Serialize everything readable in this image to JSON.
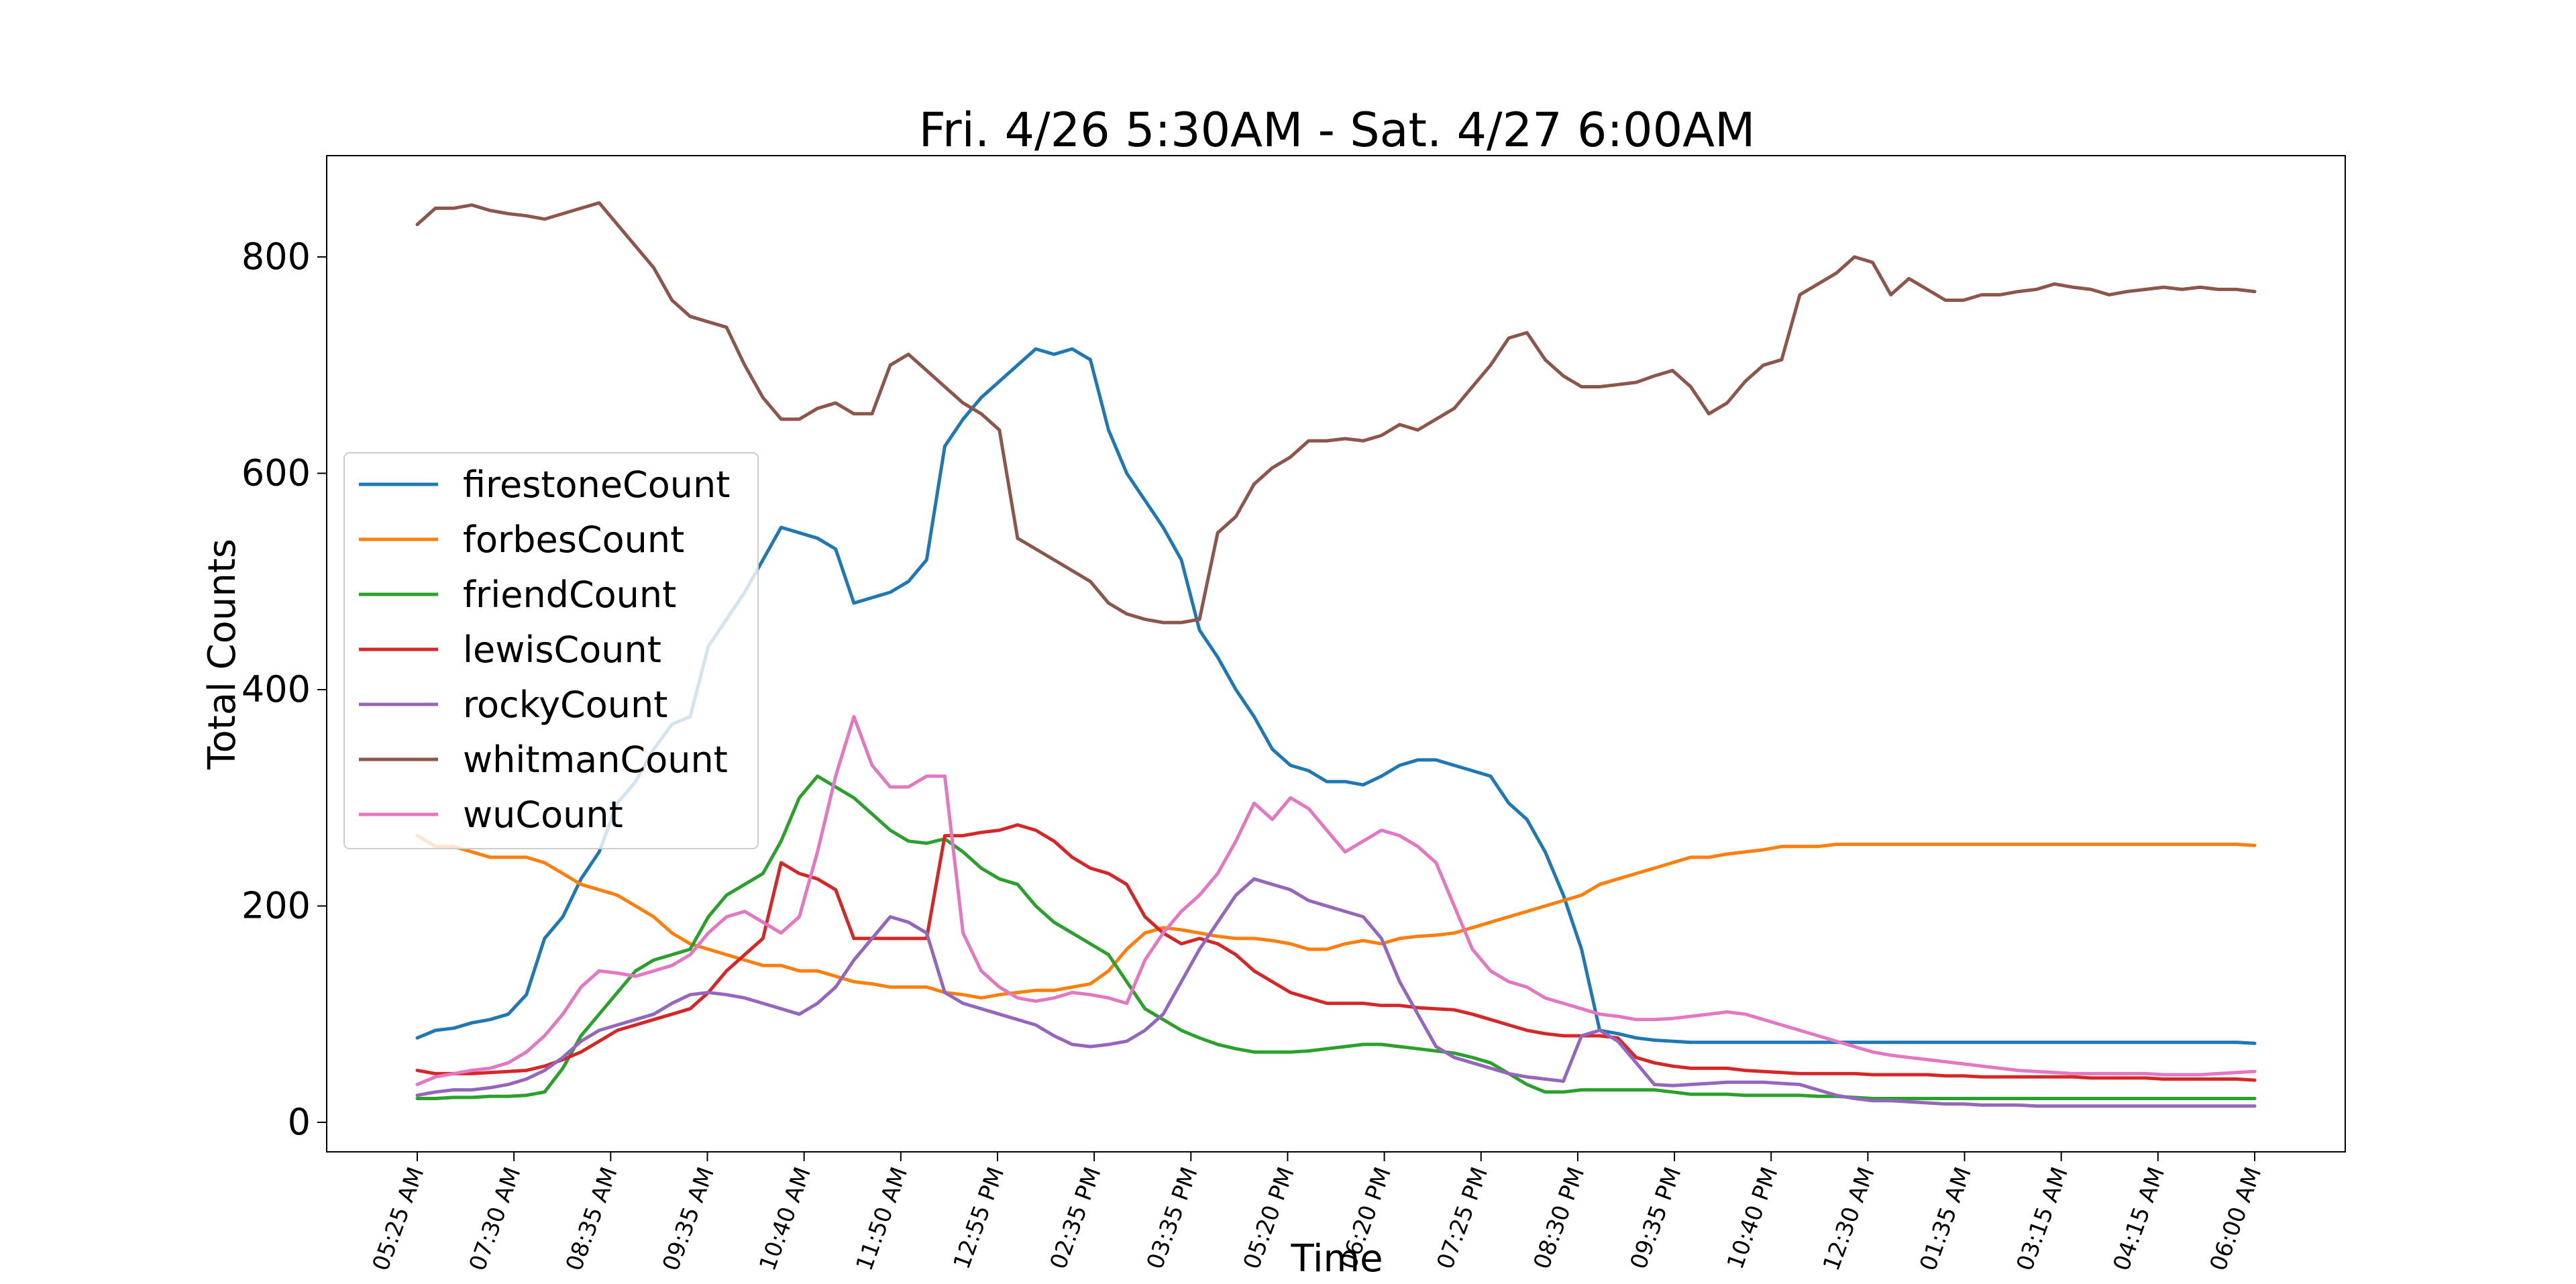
{
  "chart_data": {
    "type": "line",
    "title": "Fri. 4/26 5:30AM - Sat. 4/27 6:00AM",
    "xlabel": "Time",
    "ylabel": "Total Counts",
    "ylim": [
      -30,
      895
    ],
    "yticks": [
      0,
      200,
      400,
      600,
      800
    ],
    "x_tick_labels": [
      "05:25 AM",
      "07:30 AM",
      "08:35 AM",
      "09:35 AM",
      "10:40 AM",
      "11:50 AM",
      "12:55 PM",
      "02:35 PM",
      "03:35 PM",
      "05:20 PM",
      "06:20 PM",
      "07:25 PM",
      "08:30 PM",
      "09:35 PM",
      "10:40 PM",
      "12:30 AM",
      "01:35 AM",
      "03:15 AM",
      "04:15 AM",
      "06:00 AM"
    ],
    "grid": false,
    "legend_position": "center-left",
    "series": [
      {
        "name": "firestoneCount",
        "color": "#1f77b4",
        "values": [
          78,
          85,
          87,
          92,
          95,
          100,
          118,
          170,
          190,
          225,
          250,
          295,
          315,
          345,
          368,
          375,
          440,
          465,
          490,
          520,
          550,
          545,
          540,
          530,
          480,
          485,
          490,
          500,
          520,
          625,
          650,
          670,
          685,
          700,
          715,
          710,
          715,
          705,
          640,
          600,
          575,
          550,
          520,
          455,
          430,
          400,
          375,
          345,
          330,
          325,
          315,
          315,
          312,
          320,
          330,
          335,
          335,
          330,
          325,
          320,
          295,
          280,
          250,
          210,
          160,
          85,
          82,
          78,
          76,
          75,
          74,
          74,
          74,
          74,
          74,
          74,
          74,
          74,
          74,
          74,
          74,
          74,
          74,
          74,
          74,
          74,
          74,
          74,
          74,
          74,
          74,
          74,
          74,
          74,
          74,
          74,
          74,
          74,
          74,
          74,
          74,
          73
        ]
      },
      {
        "name": "forbesCount",
        "color": "#ff7f0e",
        "values": [
          265,
          255,
          255,
          250,
          245,
          245,
          245,
          240,
          230,
          220,
          215,
          210,
          200,
          190,
          175,
          165,
          160,
          155,
          150,
          145,
          145,
          140,
          140,
          135,
          130,
          128,
          125,
          125,
          125,
          120,
          118,
          115,
          118,
          120,
          122,
          122,
          125,
          128,
          140,
          160,
          175,
          180,
          178,
          175,
          172,
          170,
          170,
          168,
          165,
          160,
          160,
          165,
          168,
          165,
          170,
          172,
          173,
          175,
          180,
          185,
          190,
          195,
          200,
          205,
          210,
          220,
          225,
          230,
          235,
          240,
          245,
          245,
          248,
          250,
          252,
          255,
          255,
          255,
          257,
          257,
          257,
          257,
          257,
          257,
          257,
          257,
          257,
          257,
          257,
          257,
          257,
          257,
          257,
          257,
          257,
          257,
          257,
          257,
          257,
          257,
          257,
          256
        ]
      },
      {
        "name": "friendCount",
        "color": "#2ca02c",
        "values": [
          22,
          22,
          23,
          23,
          24,
          24,
          25,
          28,
          50,
          80,
          100,
          120,
          140,
          150,
          155,
          160,
          190,
          210,
          220,
          230,
          260,
          300,
          320,
          310,
          300,
          285,
          270,
          260,
          258,
          262,
          250,
          235,
          225,
          220,
          200,
          185,
          175,
          165,
          155,
          130,
          105,
          95,
          85,
          78,
          72,
          68,
          65,
          65,
          65,
          66,
          68,
          70,
          72,
          72,
          70,
          68,
          66,
          64,
          60,
          55,
          45,
          35,
          28,
          28,
          30,
          30,
          30,
          30,
          30,
          28,
          26,
          26,
          26,
          25,
          25,
          25,
          25,
          24,
          24,
          23,
          22,
          22,
          22,
          22,
          22,
          22,
          22,
          22,
          22,
          22,
          22,
          22,
          22,
          22,
          22,
          22,
          22,
          22,
          22,
          22,
          22,
          22
        ]
      },
      {
        "name": "lewisCount",
        "color": "#d62728",
        "values": [
          48,
          45,
          45,
          45,
          46,
          47,
          48,
          52,
          58,
          65,
          75,
          85,
          90,
          95,
          100,
          105,
          120,
          140,
          155,
          170,
          240,
          230,
          225,
          215,
          170,
          170,
          170,
          170,
          170,
          265,
          265,
          268,
          270,
          275,
          270,
          260,
          245,
          235,
          230,
          220,
          190,
          175,
          165,
          170,
          165,
          155,
          140,
          130,
          120,
          115,
          110,
          110,
          110,
          108,
          108,
          106,
          105,
          104,
          100,
          95,
          90,
          85,
          82,
          80,
          80,
          80,
          78,
          60,
          55,
          52,
          50,
          50,
          50,
          48,
          47,
          46,
          45,
          45,
          45,
          45,
          44,
          44,
          44,
          44,
          43,
          43,
          42,
          42,
          42,
          42,
          42,
          42,
          41,
          41,
          41,
          41,
          40,
          40,
          40,
          40,
          40,
          39
        ]
      },
      {
        "name": "rockyCount",
        "color": "#9467bd",
        "values": [
          25,
          28,
          30,
          30,
          32,
          35,
          40,
          48,
          60,
          75,
          85,
          90,
          95,
          100,
          110,
          118,
          120,
          118,
          115,
          110,
          105,
          100,
          110,
          125,
          150,
          170,
          190,
          185,
          175,
          120,
          110,
          105,
          100,
          95,
          90,
          80,
          72,
          70,
          72,
          75,
          85,
          100,
          130,
          160,
          185,
          210,
          225,
          220,
          215,
          205,
          200,
          195,
          190,
          170,
          130,
          100,
          70,
          60,
          55,
          50,
          45,
          42,
          40,
          38,
          80,
          85,
          75,
          55,
          35,
          34,
          35,
          36,
          37,
          37,
          37,
          36,
          35,
          30,
          25,
          22,
          20,
          20,
          19,
          18,
          17,
          17,
          16,
          16,
          16,
          15,
          15,
          15,
          15,
          15,
          15,
          15,
          15,
          15,
          15,
          15,
          15,
          15
        ]
      },
      {
        "name": "whitmanCount",
        "color": "#8c564b",
        "values": [
          830,
          845,
          845,
          848,
          843,
          840,
          838,
          835,
          840,
          845,
          850,
          830,
          810,
          790,
          760,
          745,
          740,
          735,
          700,
          670,
          650,
          650,
          660,
          665,
          655,
          655,
          700,
          710,
          695,
          680,
          665,
          655,
          640,
          540,
          530,
          520,
          510,
          500,
          480,
          470,
          465,
          462,
          462,
          465,
          545,
          560,
          590,
          605,
          615,
          630,
          630,
          632,
          630,
          635,
          645,
          640,
          650,
          660,
          680,
          700,
          725,
          730,
          705,
          690,
          680,
          680,
          682,
          684,
          690,
          695,
          680,
          655,
          665,
          685,
          700,
          705,
          765,
          775,
          785,
          800,
          795,
          765,
          780,
          770,
          760,
          760,
          765,
          765,
          768,
          770,
          775,
          772,
          770,
          765,
          768,
          770,
          772,
          770,
          772,
          770,
          770,
          768
        ]
      },
      {
        "name": "wuCount",
        "color": "#e377c2",
        "values": [
          35,
          42,
          45,
          48,
          50,
          55,
          65,
          80,
          100,
          125,
          140,
          138,
          135,
          140,
          145,
          155,
          175,
          190,
          195,
          185,
          175,
          190,
          250,
          320,
          375,
          330,
          310,
          310,
          320,
          320,
          175,
          140,
          125,
          115,
          112,
          115,
          120,
          118,
          115,
          110,
          150,
          175,
          195,
          210,
          230,
          260,
          295,
          280,
          300,
          290,
          270,
          250,
          260,
          270,
          265,
          255,
          240,
          200,
          160,
          140,
          130,
          125,
          115,
          110,
          105,
          100,
          98,
          95,
          95,
          96,
          98,
          100,
          102,
          100,
          95,
          90,
          85,
          80,
          75,
          70,
          65,
          62,
          60,
          58,
          56,
          54,
          52,
          50,
          48,
          47,
          46,
          45,
          45,
          45,
          45,
          45,
          44,
          44,
          44,
          45,
          46,
          47
        ]
      }
    ]
  }
}
